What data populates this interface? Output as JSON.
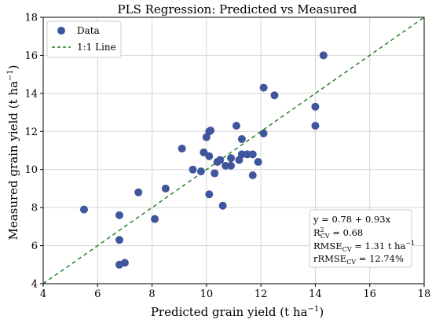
{
  "chart_data": {
    "type": "scatter",
    "title": "PLS Regression: Predicted vs Measured",
    "xlabel": "Predicted grain yield (t ha",
    "xlabel_sup": "−1",
    "xlabel_end": ")",
    "ylabel": "Measured grain yield (t ha",
    "ylabel_sup": "−1",
    "ylabel_end": ")",
    "xlim": [
      4,
      18
    ],
    "ylim": [
      4,
      18
    ],
    "xticks": [
      4,
      6,
      8,
      10,
      12,
      14,
      16,
      18
    ],
    "yticks": [
      4,
      6,
      8,
      10,
      12,
      14,
      16,
      18
    ],
    "grid": true,
    "legend_position": "top-left",
    "series": [
      {
        "name": "Data",
        "color": "#3f559c",
        "points": [
          [
            5.5,
            7.9
          ],
          [
            6.8,
            7.6
          ],
          [
            6.8,
            6.3
          ],
          [
            6.8,
            5.0
          ],
          [
            7.0,
            5.1
          ],
          [
            7.5,
            8.8
          ],
          [
            8.1,
            7.4
          ],
          [
            8.5,
            9.0
          ],
          [
            9.1,
            11.1
          ],
          [
            9.5,
            10.0
          ],
          [
            9.8,
            9.9
          ],
          [
            9.9,
            10.9
          ],
          [
            10.0,
            11.7
          ],
          [
            10.1,
            12.0
          ],
          [
            10.15,
            12.05
          ],
          [
            10.1,
            10.7
          ],
          [
            10.1,
            8.7
          ],
          [
            10.3,
            9.8
          ],
          [
            10.4,
            10.4
          ],
          [
            10.5,
            10.5
          ],
          [
            10.6,
            8.1
          ],
          [
            10.7,
            10.2
          ],
          [
            10.9,
            10.2
          ],
          [
            10.9,
            10.6
          ],
          [
            11.1,
            12.3
          ],
          [
            11.2,
            10.5
          ],
          [
            11.3,
            11.6
          ],
          [
            11.3,
            10.8
          ],
          [
            11.5,
            10.8
          ],
          [
            11.7,
            10.8
          ],
          [
            11.7,
            9.7
          ],
          [
            11.9,
            10.4
          ],
          [
            12.1,
            14.3
          ],
          [
            12.1,
            11.9
          ],
          [
            12.5,
            13.9
          ],
          [
            14.0,
            12.3
          ],
          [
            14.0,
            13.3
          ],
          [
            14.3,
            16.0
          ]
        ]
      },
      {
        "name": "1:1 Line",
        "color": "#1a7a1a",
        "style": "dashed",
        "line": [
          [
            4,
            4
          ],
          [
            18,
            18
          ]
        ]
      }
    ],
    "annotation": {
      "equation": "y = 0.78 + 0.93x",
      "r2_label": "R",
      "r2_sup": "2",
      "r2_sub": "CV",
      "r2_value": " = 0.68",
      "rmse_label": "RMSE",
      "rmse_sub": "CV",
      "rmse_value": " = 1.31 t ha",
      "rmse_sup": "−1",
      "rrmse_label": "rRMSE",
      "rrmse_sub": "CV",
      "rrmse_value": " = 12.74%"
    }
  }
}
